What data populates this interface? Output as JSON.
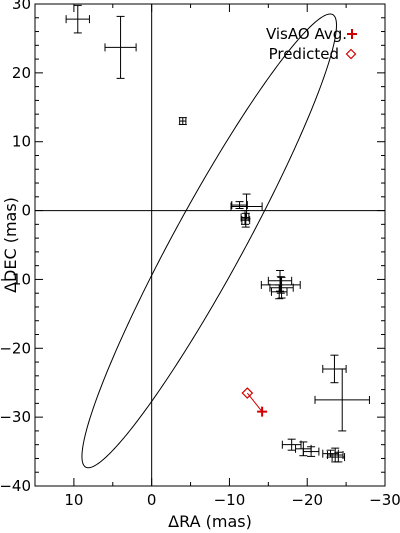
{
  "chart_data": {
    "type": "scatter",
    "xlabel": "ΔRA (mas)",
    "ylabel": "ΔDEC (mas)",
    "xlim": [
      15,
      -30
    ],
    "ylim": [
      -40,
      30
    ],
    "xticks": [
      10,
      0,
      -10,
      -20,
      -30
    ],
    "yticks": [
      30,
      20,
      10,
      0,
      -10,
      -20,
      -30,
      -40
    ],
    "xtick_labels": [
      "10",
      "0",
      "−10",
      "−20",
      "−30"
    ],
    "ytick_labels": [
      "30",
      "20",
      "10",
      "0",
      "−10",
      "−20",
      "−30",
      "−40"
    ],
    "reference_lines": {
      "x": 0,
      "y": 0
    },
    "legend": {
      "position": "top-right",
      "entries": [
        {
          "label": "VisAO Avg.",
          "marker": "plus",
          "color": "#d00000"
        },
        {
          "label": "Predicted",
          "marker": "diamond",
          "color": "#d00000"
        }
      ]
    },
    "orbit": {
      "center": [
        -7.4,
        -4.4
      ],
      "semi_major": 36.5,
      "semi_minor": 4.6,
      "major_axis_angle_deg": 115.7
    },
    "series": [
      {
        "label": "",
        "color": "#000000",
        "points": [
          {
            "x": 9.5,
            "y": 27.8,
            "xerr": 1.5,
            "yerr": 2.0
          },
          {
            "x": 4.0,
            "y": 23.7,
            "xerr": 2.0,
            "yerr": 4.5
          },
          {
            "x": -4.0,
            "y": 13.0,
            "xerr": 0.4,
            "yerr": 0.5
          },
          {
            "x": -11.3,
            "y": 0.8,
            "xerr": 1.0,
            "yerr": 0.5
          },
          {
            "x": -12.2,
            "y": 0.6,
            "xerr": 2.0,
            "yerr": 1.8
          },
          {
            "x": -12.0,
            "y": -1.0,
            "xerr": 0.5,
            "yerr": 1.0
          },
          {
            "x": -12.1,
            "y": -1.4,
            "xerr": 0.5,
            "yerr": 1.0
          },
          {
            "x": -16.5,
            "y": -10.2,
            "xerr": 1.5,
            "yerr": 1.5
          },
          {
            "x": -16.6,
            "y": -10.8,
            "xerr": 2.5,
            "yerr": 1.2
          },
          {
            "x": -16.7,
            "y": -11.2,
            "xerr": 1.5,
            "yerr": 1.5
          },
          {
            "x": -16.4,
            "y": -11.8,
            "xerr": 1.0,
            "yerr": 1.0
          },
          {
            "x": -23.5,
            "y": -23.0,
            "xerr": 1.5,
            "yerr": 2.0
          },
          {
            "x": -24.5,
            "y": -27.5,
            "xerr": 3.5,
            "yerr": 4.5
          },
          {
            "x": -18.0,
            "y": -34.0,
            "xerr": 1.2,
            "yerr": 0.8
          },
          {
            "x": -19.5,
            "y": -34.6,
            "xerr": 1.0,
            "yerr": 1.0
          },
          {
            "x": -20.5,
            "y": -35.0,
            "xerr": 1.0,
            "yerr": 0.7
          },
          {
            "x": -23.0,
            "y": -35.3,
            "xerr": 1.0,
            "yerr": 0.5
          },
          {
            "x": -23.6,
            "y": -35.5,
            "xerr": 1.0,
            "yerr": 1.0
          },
          {
            "x": -24.0,
            "y": -35.8,
            "xerr": 0.8,
            "yerr": 0.7
          }
        ]
      }
    ],
    "visao_avg": {
      "x": -14.2,
      "y": -29.2,
      "xerr": 0.5,
      "yerr": 0.5
    },
    "predicted": {
      "x": -12.3,
      "y": -26.5
    }
  }
}
